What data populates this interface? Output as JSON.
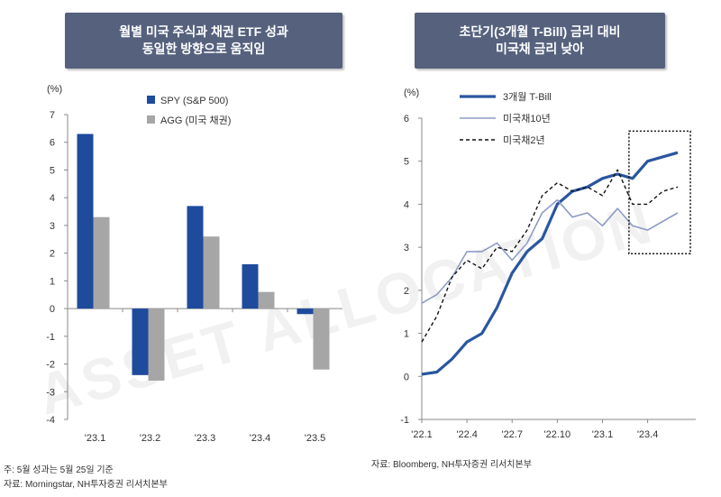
{
  "headers": {
    "left": [
      "월별 미국 주식과 채권 ETF 성과",
      "동일한 방향으로 움직임"
    ],
    "right": [
      "초단기(3개월 T-Bill) 금리 대비",
      "미국채 금리 낮아"
    ]
  },
  "notes": {
    "left": [
      "주: 5월 성과는 5월 25일 기준",
      "자료: Morningstar, NH투자증권 리서치본부"
    ],
    "right": [
      "자료: Bloomberg, NH투자증권 리서치본부"
    ]
  },
  "watermark": "ASSET ALLOCATION",
  "colors": {
    "spy": "#1e4b9c",
    "agg": "#a6a6a6",
    "tbill": "#2a56a0",
    "ust10": "#8d9cc4",
    "ust2": "#111111"
  },
  "chart_data": [
    {
      "type": "bar",
      "unit_label": "(%)",
      "categories": [
        "'23.1",
        "'23.2",
        "'23.3",
        "'23.4",
        "'23.5"
      ],
      "series": [
        {
          "name": "SPY (S&P 500)",
          "values": [
            6.3,
            -2.4,
            3.7,
            1.6,
            -0.2
          ]
        },
        {
          "name": "AGG (미국 채권)",
          "values": [
            3.3,
            -2.6,
            2.6,
            0.6,
            -2.2
          ]
        }
      ],
      "ylim": [
        -4,
        7
      ],
      "yticks": [
        7,
        6,
        5,
        4,
        3,
        2,
        1,
        0,
        -1,
        -2,
        -3,
        -4
      ],
      "legend": "top-left"
    },
    {
      "type": "line",
      "unit_label": "(%)",
      "x_ticks": [
        "'22.1",
        "'22.4",
        "'22.7",
        "'22.10",
        "'23.1",
        "'23.4"
      ],
      "xlim": [
        "2022-01",
        "2023-06"
      ],
      "ylim": [
        -1,
        6
      ],
      "yticks": [
        6,
        5,
        4,
        3,
        2,
        1,
        0,
        -1
      ],
      "legend": "top-left",
      "series": [
        {
          "name": "3개월 T-Bill",
          "points": [
            [
              "2022-01",
              0.05
            ],
            [
              "2022-02",
              0.1
            ],
            [
              "2022-03",
              0.4
            ],
            [
              "2022-04",
              0.8
            ],
            [
              "2022-05",
              1.0
            ],
            [
              "2022-06",
              1.6
            ],
            [
              "2022-07",
              2.4
            ],
            [
              "2022-08",
              2.9
            ],
            [
              "2022-09",
              3.2
            ],
            [
              "2022-10",
              4.0
            ],
            [
              "2022-11",
              4.3
            ],
            [
              "2022-12",
              4.4
            ],
            [
              "2023-01",
              4.6
            ],
            [
              "2023-02",
              4.7
            ],
            [
              "2023-03",
              4.6
            ],
            [
              "2023-04",
              5.0
            ],
            [
              "2023-05",
              5.1
            ],
            [
              "2023-06",
              5.2
            ]
          ]
        },
        {
          "name": "미국채10년",
          "points": [
            [
              "2022-01",
              1.7
            ],
            [
              "2022-02",
              1.9
            ],
            [
              "2022-03",
              2.3
            ],
            [
              "2022-04",
              2.9
            ],
            [
              "2022-05",
              2.9
            ],
            [
              "2022-06",
              3.1
            ],
            [
              "2022-07",
              2.7
            ],
            [
              "2022-08",
              3.1
            ],
            [
              "2022-09",
              3.8
            ],
            [
              "2022-10",
              4.1
            ],
            [
              "2022-11",
              3.7
            ],
            [
              "2022-12",
              3.8
            ],
            [
              "2023-01",
              3.5
            ],
            [
              "2023-02",
              3.9
            ],
            [
              "2023-03",
              3.5
            ],
            [
              "2023-04",
              3.4
            ],
            [
              "2023-05",
              3.6
            ],
            [
              "2023-06",
              3.8
            ]
          ]
        },
        {
          "name": "미국채2년",
          "points": [
            [
              "2022-01",
              0.8
            ],
            [
              "2022-02",
              1.4
            ],
            [
              "2022-03",
              2.3
            ],
            [
              "2022-04",
              2.7
            ],
            [
              "2022-05",
              2.5
            ],
            [
              "2022-06",
              3.0
            ],
            [
              "2022-07",
              2.9
            ],
            [
              "2022-08",
              3.4
            ],
            [
              "2022-09",
              4.2
            ],
            [
              "2022-10",
              4.5
            ],
            [
              "2022-11",
              4.3
            ],
            [
              "2022-12",
              4.4
            ],
            [
              "2023-01",
              4.2
            ],
            [
              "2023-02",
              4.8
            ],
            [
              "2023-03",
              4.0
            ],
            [
              "2023-04",
              4.0
            ],
            [
              "2023-05",
              4.3
            ],
            [
              "2023-06",
              4.4
            ]
          ]
        }
      ]
    }
  ]
}
